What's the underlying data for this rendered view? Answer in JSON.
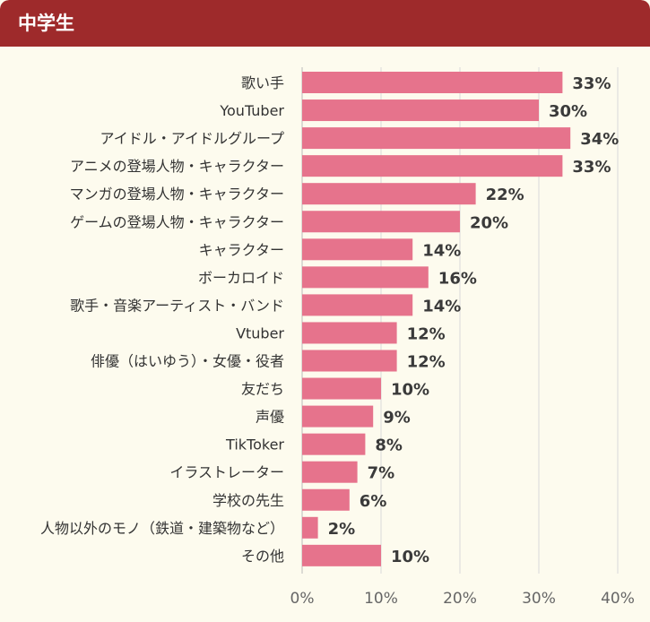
{
  "header": {
    "title": "中学生"
  },
  "chart_data": {
    "type": "bar",
    "orientation": "horizontal",
    "categories": [
      "歌い手",
      "YouTuber",
      "アイドル・アイドルグループ",
      "アニメの登場人物・キャラクター",
      "マンガの登場人物・キャラクター",
      "ゲームの登場人物・キャラクター",
      "キャラクター",
      "ボーカロイド",
      "歌手・音楽アーティスト・バンド",
      "Vtuber",
      "俳優（はいゆう）・女優・役者",
      "友だち",
      "声優",
      "TikToker",
      "イラストレーター",
      "学校の先生",
      "人物以外のモノ（鉄道・建築物など）",
      "その他"
    ],
    "values": [
      33,
      30,
      34,
      33,
      22,
      20,
      14,
      16,
      14,
      12,
      12,
      10,
      9,
      8,
      7,
      6,
      2,
      10
    ],
    "value_labels": [
      "33%",
      "30%",
      "34%",
      "33%",
      "22%",
      "20%",
      "14%",
      "16%",
      "14%",
      "12%",
      "12%",
      "10%",
      "9%",
      "8%",
      "7%",
      "6%",
      "2%",
      "10%"
    ],
    "xlim": [
      0,
      40
    ],
    "xticks": [
      0,
      10,
      20,
      30,
      40
    ],
    "xtick_labels": [
      "0%",
      "10%",
      "20%",
      "30%",
      "40%"
    ],
    "grid": "vertical",
    "bar_color": "#e6738c"
  }
}
